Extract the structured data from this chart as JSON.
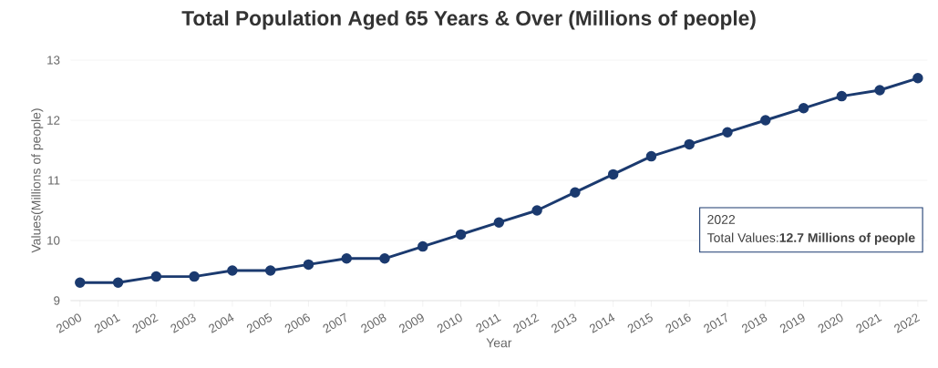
{
  "chart_data": {
    "type": "line",
    "title": "Total Population Aged 65 Years & Over (Millions of people)",
    "xlabel": "Year",
    "ylabel": "Values(Millions of people)",
    "categories": [
      "2000",
      "2001",
      "2002",
      "2003",
      "2004",
      "2005",
      "2006",
      "2007",
      "2008",
      "2009",
      "2010",
      "2011",
      "2012",
      "2013",
      "2014",
      "2015",
      "2016",
      "2017",
      "2018",
      "2019",
      "2020",
      "2021",
      "2022"
    ],
    "series": [
      {
        "color": "#1b3a6f",
        "values": [
          9.3,
          9.3,
          9.4,
          9.4,
          9.5,
          9.5,
          9.6,
          9.7,
          9.7,
          9.9,
          10.1,
          10.3,
          10.5,
          10.8,
          11.1,
          11.4,
          11.6,
          11.8,
          12.0,
          12.2,
          12.4,
          12.5,
          12.7
        ]
      }
    ],
    "ylim": [
      9,
      13
    ],
    "yticks": [
      9,
      10,
      11,
      12,
      13
    ],
    "grid": "y",
    "marker": "circle",
    "line_style": "solid",
    "annotations": [
      "2022",
      "Total Values:**12.7 Millions of people**"
    ]
  }
}
